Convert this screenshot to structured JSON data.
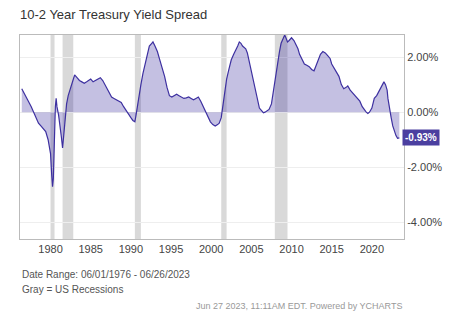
{
  "chart_data": {
    "type": "line",
    "title": "10-2 Year Treasury Yield Spread",
    "x": [
      1976.42,
      1976.7,
      1977.0,
      1977.3,
      1977.6,
      1977.9,
      1978.2,
      1978.5,
      1978.8,
      1979.1,
      1979.4,
      1979.7,
      1980.0,
      1980.15,
      1980.25,
      1980.35,
      1980.5,
      1980.6,
      1980.7,
      1980.8,
      1981.0,
      1981.2,
      1981.35,
      1981.5,
      1981.6,
      1981.7,
      1981.85,
      1982.0,
      1982.2,
      1982.4,
      1982.6,
      1982.83,
      1983.0,
      1983.3,
      1983.6,
      1983.9,
      1984.2,
      1984.5,
      1984.7,
      1985.0,
      1985.3,
      1985.6,
      1985.9,
      1986.2,
      1986.5,
      1986.8,
      1987.0,
      1987.3,
      1987.6,
      1987.9,
      1988.2,
      1988.5,
      1988.8,
      1989.1,
      1989.4,
      1989.7,
      1990.0,
      1990.25,
      1990.5,
      1990.65,
      1990.8,
      1991.0,
      1991.25,
      1991.5,
      1991.8,
      1992.0,
      1992.3,
      1992.6,
      1992.75,
      1993.0,
      1993.3,
      1993.6,
      1993.9,
      1994.2,
      1994.5,
      1994.8,
      1995.1,
      1995.4,
      1995.7,
      1996.0,
      1996.3,
      1996.6,
      1996.9,
      1997.2,
      1997.5,
      1997.8,
      1998.1,
      1998.4,
      1998.7,
      1999.0,
      1999.3,
      1999.6,
      1999.9,
      2000.2,
      2000.5,
      2000.8,
      2001.0,
      2001.25,
      2001.4,
      2001.6,
      2001.75,
      2001.92,
      2002.2,
      2002.5,
      2002.8,
      2003.0,
      2003.3,
      2003.5,
      2003.7,
      2003.9,
      2004.1,
      2004.3,
      2004.5,
      2004.7,
      2004.9,
      2005.2,
      2005.5,
      2005.8,
      2006.0,
      2006.3,
      2006.5,
      2006.7,
      2006.9,
      2007.2,
      2007.5,
      2007.7,
      2007.92,
      2008.1,
      2008.3,
      2008.5,
      2008.7,
      2008.9,
      2009.0,
      2009.15,
      2009.3,
      2009.5,
      2009.7,
      2010.0,
      2010.3,
      2010.5,
      2010.8,
      2011.0,
      2011.3,
      2011.6,
      2011.9,
      2012.2,
      2012.5,
      2012.8,
      2013.0,
      2013.3,
      2013.6,
      2013.9,
      2014.2,
      2014.5,
      2014.8,
      2015.0,
      2015.3,
      2015.6,
      2015.9,
      2016.2,
      2016.5,
      2016.8,
      2017.0,
      2017.3,
      2017.6,
      2017.9,
      2018.2,
      2018.5,
      2018.8,
      2019.0,
      2019.3,
      2019.5,
      2019.7,
      2020.0,
      2020.3,
      2020.6,
      2020.9,
      2021.2,
      2021.5,
      2021.7,
      2021.9,
      2022.0,
      2022.2,
      2022.4,
      2022.6,
      2022.8,
      2023.0,
      2023.2,
      2023.42
    ],
    "series": [
      {
        "color": "#3d30a0",
        "values": [
          0.85,
          0.7,
          0.55,
          0.4,
          0.2,
          0.0,
          -0.2,
          -0.4,
          -0.5,
          -0.6,
          -0.7,
          -1.0,
          -1.5,
          -2.3,
          -2.7,
          -2.4,
          -0.5,
          0.2,
          0.5,
          0.2,
          -0.1,
          -0.5,
          -0.9,
          -1.3,
          -1.0,
          -0.7,
          -0.3,
          0.3,
          0.6,
          0.8,
          1.0,
          1.2,
          1.35,
          1.25,
          1.15,
          1.1,
          1.05,
          1.1,
          1.15,
          1.2,
          1.1,
          1.15,
          1.2,
          1.25,
          1.15,
          1.0,
          0.85,
          0.7,
          0.55,
          0.5,
          0.45,
          0.4,
          0.35,
          0.2,
          0.05,
          -0.1,
          -0.2,
          -0.3,
          -0.35,
          -0.1,
          0.2,
          0.6,
          1.0,
          1.4,
          1.8,
          2.1,
          2.4,
          2.5,
          2.55,
          2.4,
          2.2,
          1.9,
          1.6,
          1.3,
          0.9,
          0.6,
          0.55,
          0.6,
          0.65,
          0.6,
          0.55,
          0.5,
          0.52,
          0.55,
          0.5,
          0.45,
          0.5,
          0.55,
          0.4,
          0.2,
          0.0,
          -0.2,
          -0.35,
          -0.45,
          -0.5,
          -0.45,
          -0.4,
          -0.2,
          0.1,
          0.5,
          0.85,
          1.2,
          1.55,
          1.9,
          2.1,
          2.2,
          2.4,
          2.55,
          2.5,
          2.4,
          2.35,
          2.3,
          2.15,
          1.9,
          1.6,
          1.2,
          0.8,
          0.5,
          0.15,
          0.05,
          -0.02,
          0.0,
          0.05,
          0.1,
          0.3,
          0.7,
          1.1,
          1.5,
          1.9,
          2.2,
          2.5,
          2.65,
          2.75,
          2.8,
          2.7,
          2.55,
          2.6,
          2.7,
          2.6,
          2.5,
          2.3,
          2.1,
          1.9,
          1.75,
          1.7,
          1.65,
          1.55,
          1.5,
          1.65,
          1.85,
          2.1,
          2.2,
          2.15,
          2.05,
          1.95,
          1.75,
          1.6,
          1.5,
          1.3,
          1.0,
          0.85,
          0.9,
          0.95,
          0.8,
          0.7,
          0.6,
          0.5,
          0.4,
          0.2,
          0.1,
          0.0,
          -0.05,
          0.0,
          0.15,
          0.5,
          0.6,
          0.75,
          0.9,
          1.1,
          1.0,
          0.8,
          0.5,
          0.1,
          -0.2,
          -0.5,
          -0.7,
          -0.85,
          -0.95,
          -0.93
        ]
      }
    ],
    "xlim": [
      1976.2,
      2024.0
    ],
    "xticks": [
      1980,
      1985,
      1990,
      1995,
      2000,
      2005,
      2010,
      2015,
      2020
    ],
    "ylim": [
      -4.6,
      2.8
    ],
    "yticks": [
      {
        "value": -4.0,
        "label": "-4.00%"
      },
      {
        "value": -2.0,
        "label": "-2.00%"
      },
      {
        "value": 0.0,
        "label": "0.00%"
      },
      {
        "value": 2.0,
        "label": "2.00%"
      }
    ],
    "grid": true,
    "recession_bands": [
      [
        1980.0,
        1980.5
      ],
      [
        1981.5,
        1982.83
      ],
      [
        1990.5,
        1991.25
      ],
      [
        2001.25,
        2001.92
      ],
      [
        2007.92,
        2009.5
      ]
    ],
    "recession_color": "#d0d0d0",
    "annotations": [
      {
        "text": "-0.93%",
        "x": 2023.42,
        "y": -0.93,
        "color": "#4b3fa0"
      }
    ],
    "notes": [
      "Date Range: 06/01/1976 - 06/26/2023",
      "Gray = US Recessions",
      "Jun 27 2023, 11:11AM EDT. Powered by YCHARTS"
    ]
  }
}
